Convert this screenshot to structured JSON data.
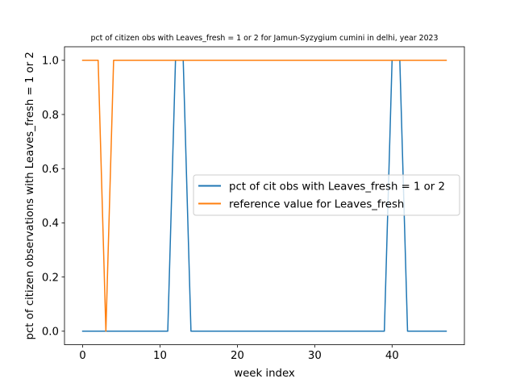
{
  "chart_data": {
    "type": "line",
    "title": "pct of citizen obs with Leaves_fresh = 1 or 2 for Jamun-Syzygium cumini in delhi, year 2023",
    "xlabel": "week index",
    "ylabel": "pct of citizen observations with Leaves_fresh = 1 or 2",
    "xlim": [
      -2.35,
      49.35
    ],
    "ylim": [
      -0.05,
      1.05
    ],
    "xticks": [
      "0",
      "10",
      "20",
      "30",
      "40"
    ],
    "xtick_values": [
      0,
      10,
      20,
      30,
      40
    ],
    "yticks": [
      "0.0",
      "0.2",
      "0.4",
      "0.6",
      "0.8",
      "1.0"
    ],
    "ytick_values": [
      0.0,
      0.2,
      0.4,
      0.6,
      0.8,
      1.0
    ],
    "grid": false,
    "legend_position": "center-right",
    "x": [
      0,
      1,
      2,
      3,
      4,
      5,
      6,
      7,
      8,
      9,
      10,
      11,
      12,
      13,
      14,
      15,
      16,
      17,
      18,
      19,
      20,
      21,
      22,
      23,
      24,
      25,
      26,
      27,
      28,
      29,
      30,
      31,
      32,
      33,
      34,
      35,
      36,
      37,
      38,
      39,
      40,
      41,
      42,
      43,
      44,
      45,
      46,
      47
    ],
    "series": [
      {
        "name": "pct of cit obs with Leaves_fresh = 1 or 2",
        "color": "#1f77b4",
        "values": [
          0,
          0,
          0,
          0,
          0,
          0,
          0,
          0,
          0,
          0,
          0,
          0,
          1,
          1,
          0,
          0,
          0,
          0,
          0,
          0,
          0,
          0,
          0,
          0,
          0,
          0,
          0,
          0,
          0,
          0,
          0,
          0,
          0,
          0,
          0,
          0,
          0,
          0,
          0,
          0,
          1,
          1,
          0,
          0,
          0,
          0,
          0,
          0
        ]
      },
      {
        "name": "reference value for Leaves_fresh",
        "color": "#ff7f0e",
        "values": [
          1,
          1,
          1,
          0,
          1,
          1,
          1,
          1,
          1,
          1,
          1,
          1,
          1,
          1,
          1,
          1,
          1,
          1,
          1,
          1,
          1,
          1,
          1,
          1,
          1,
          1,
          1,
          1,
          1,
          1,
          1,
          1,
          1,
          1,
          1,
          1,
          1,
          1,
          1,
          1,
          1,
          1,
          1,
          1,
          1,
          1,
          1,
          1
        ]
      }
    ]
  }
}
